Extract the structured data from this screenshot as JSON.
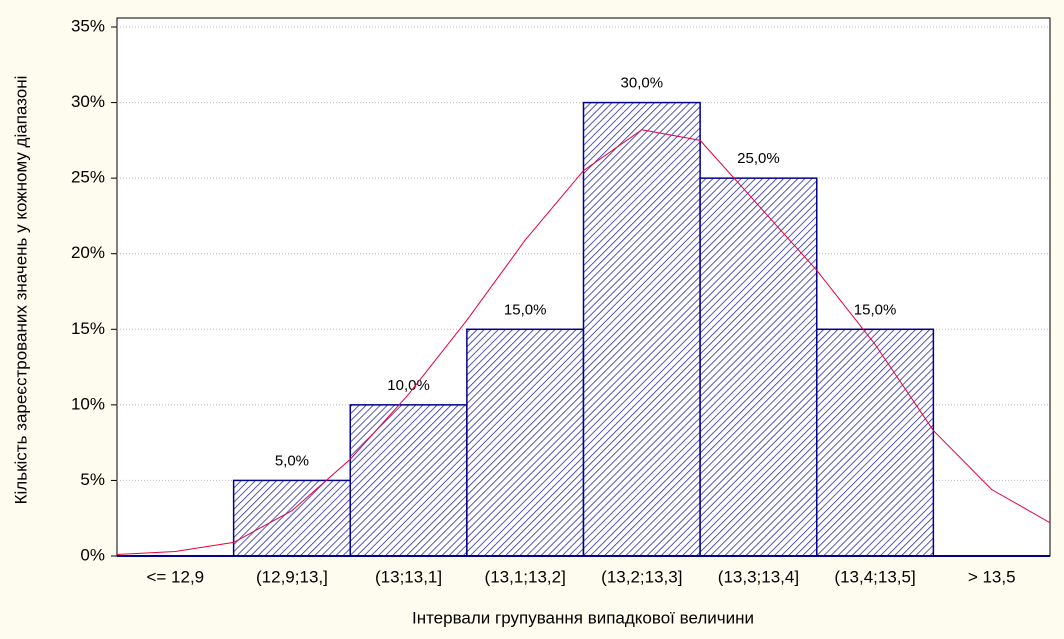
{
  "chart_data": {
    "type": "bar",
    "categories": [
      "<= 12,9",
      "(12,9;13,]",
      "(13;13,1]",
      "(13,1;13,2]",
      "(13,2;13,3]",
      "(13,3;13,4]",
      "(13,4;13,5]",
      "> 13,5"
    ],
    "values": [
      0,
      5,
      10,
      15,
      30,
      25,
      15,
      0
    ],
    "value_labels": [
      null,
      "5,0%",
      "10,0%",
      "15,0%",
      "30,0%",
      "25,0%",
      "15,0%",
      null
    ],
    "color": "#00008b",
    "x_label": "Інтервали групування випадкової величини",
    "y_label": "Кількість зареєстрованих значень у кожному діапазоні",
    "ylim": [
      0,
      35
    ],
    "yticks": [
      {
        "value": 0,
        "label": "0%"
      },
      {
        "value": 5,
        "label": "5%"
      },
      {
        "value": 10,
        "label": "10%"
      },
      {
        "value": 15,
        "label": "15%"
      },
      {
        "value": 20,
        "label": "20%"
      },
      {
        "value": 25,
        "label": "25%"
      },
      {
        "value": 30,
        "label": "30%"
      },
      {
        "value": 35,
        "label": "35%"
      }
    ],
    "grid": true,
    "curve": {
      "color": "#e8003c",
      "x": [
        0,
        0.5,
        1,
        1.5,
        2,
        2.5,
        3,
        3.5,
        4,
        4.5,
        5,
        5.5,
        6,
        6.5,
        7,
        7.5,
        8
      ],
      "values": [
        0.1,
        0.3,
        0.9,
        3,
        6.4,
        10.7,
        15.6,
        20.9,
        25.5,
        28.2,
        27.5,
        23.2,
        18.9,
        14,
        8.3,
        4.4,
        2.2
      ]
    }
  }
}
